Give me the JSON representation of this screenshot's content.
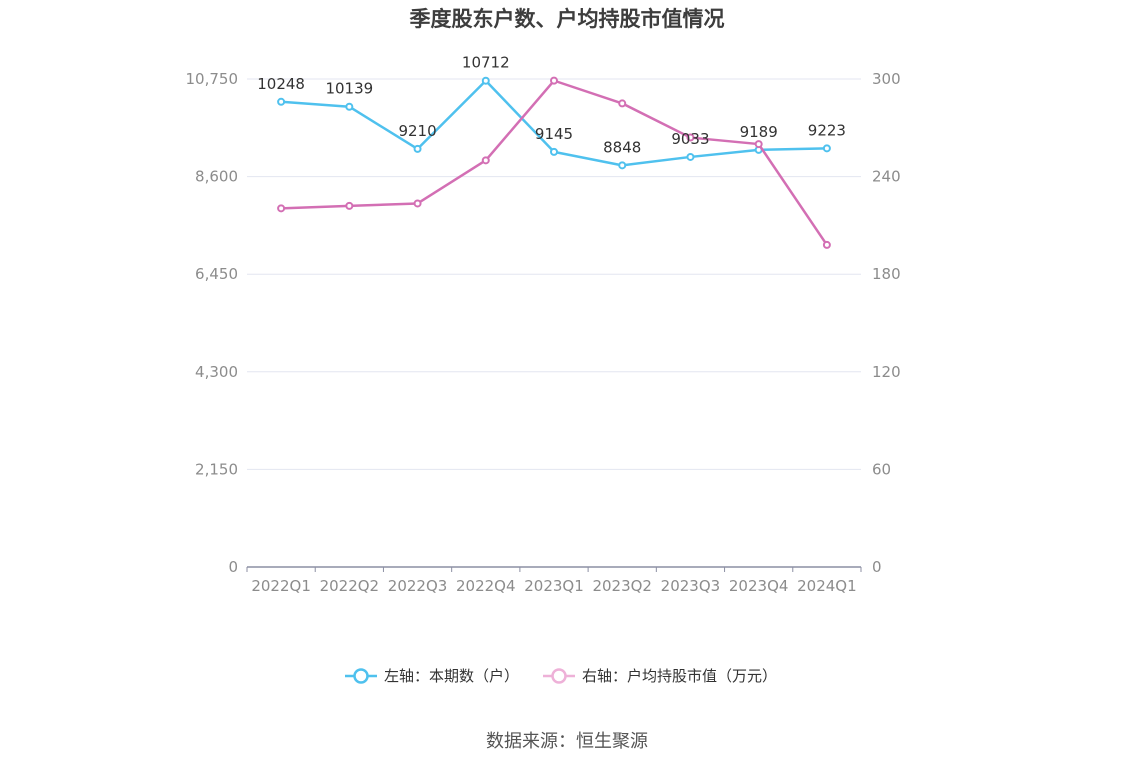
{
  "title": "季度股东户数、户均持股市值情况",
  "source": "数据来源：恒生聚源",
  "chart_data": {
    "type": "line",
    "categories": [
      "2022Q1",
      "2022Q2",
      "2022Q3",
      "2022Q4",
      "2023Q1",
      "2023Q2",
      "2023Q3",
      "2023Q4",
      "2024Q1"
    ],
    "left_axis": {
      "ticks": [
        "0",
        "2,150",
        "4,300",
        "6,450",
        "8,600",
        "10,750"
      ],
      "ylim": [
        0,
        10750
      ]
    },
    "right_axis": {
      "ticks": [
        "0",
        "60",
        "120",
        "180",
        "240",
        "300"
      ],
      "ylim": [
        0,
        300
      ]
    },
    "series": [
      {
        "name": "左轴：本期数（户）",
        "axis": "left",
        "color": "#4fc1ee",
        "values": [
          10248,
          10139,
          9210,
          10712,
          9145,
          8848,
          9033,
          9189,
          9223
        ],
        "labels": [
          "10248",
          "10139",
          "9210",
          "10712",
          "9145",
          "8848",
          "9033",
          "9189",
          "9223"
        ]
      },
      {
        "name": "右轴：户均持股市值（万元）",
        "axis": "right",
        "color": "#d36fb4",
        "legend_color": "#eeb1d8",
        "values": [
          220.5,
          222,
          223.5,
          250,
          299,
          285,
          264,
          260,
          198
        ]
      }
    ],
    "grid": true,
    "legend_position": "bottom"
  }
}
